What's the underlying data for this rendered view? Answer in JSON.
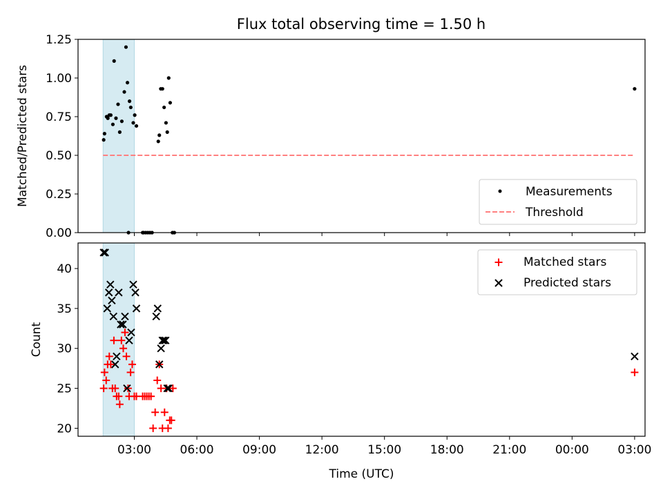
{
  "title": "Flux total observing time = 1.50 h",
  "chart_data": [
    {
      "type": "scatter",
      "ylabel": "Matched/Predicted stars",
      "xlabel": "",
      "xlim_hours": [
        0.3,
        27.5
      ],
      "ylim": [
        0,
        1.25
      ],
      "yticks": [
        0.0,
        0.25,
        0.5,
        0.75,
        1.0,
        1.25
      ],
      "ytick_labels": [
        "0.00",
        "0.25",
        "0.50",
        "0.75",
        "1.00",
        "1.25"
      ],
      "shaded_span_hours": [
        1.5,
        3.0
      ],
      "threshold": {
        "value": 0.5,
        "x_range_hours": [
          1.5,
          27.0
        ],
        "color": "#ff8080"
      },
      "legend": {
        "position": "lower right",
        "entries": [
          "Measurements",
          "Threshold"
        ]
      },
      "series": [
        {
          "name": "Measurements",
          "color": "#000000",
          "x_hours": [
            1.53,
            1.57,
            1.67,
            1.73,
            1.8,
            1.87,
            1.97,
            2.03,
            2.12,
            2.22,
            2.3,
            2.4,
            2.52,
            2.6,
            2.67,
            2.77,
            2.83,
            2.95,
            3.02,
            3.1,
            2.72,
            3.4,
            3.45,
            3.55,
            3.65,
            3.75,
            3.85,
            4.15,
            4.2,
            4.27,
            4.35,
            4.43,
            4.52,
            4.58,
            4.65,
            4.72,
            4.83,
            4.92,
            27.0
          ],
          "y": [
            0.6,
            0.64,
            0.75,
            0.74,
            0.76,
            0.76,
            0.7,
            1.11,
            0.74,
            0.83,
            0.65,
            0.72,
            0.91,
            1.2,
            0.97,
            0.85,
            0.81,
            0.71,
            0.76,
            0.69,
            0.0,
            0.0,
            0.0,
            0.0,
            0.0,
            0.0,
            0.0,
            0.59,
            0.63,
            0.93,
            0.93,
            0.81,
            0.71,
            0.65,
            1.0,
            0.84,
            0.0,
            0.0,
            0.93
          ]
        }
      ]
    },
    {
      "type": "scatter",
      "ylabel": "Count",
      "xlabel": "Time (UTC)",
      "xlim_hours": [
        0.3,
        27.5
      ],
      "ylim": [
        19,
        43.2
      ],
      "yticks": [
        20,
        25,
        30,
        35,
        40
      ],
      "ytick_labels": [
        "20",
        "25",
        "30",
        "35",
        "40"
      ],
      "xticks_hours": [
        3,
        6,
        9,
        12,
        15,
        18,
        21,
        24,
        27
      ],
      "xtick_labels": [
        "03:00",
        "06:00",
        "09:00",
        "12:00",
        "15:00",
        "18:00",
        "21:00",
        "00:00",
        "03:00"
      ],
      "shaded_span_hours": [
        1.5,
        3.0
      ],
      "legend": {
        "position": "upper right",
        "entries": [
          "Matched stars",
          "Predicted stars"
        ]
      },
      "series": [
        {
          "name": "Matched stars",
          "color": "#ff0000",
          "marker": "plus",
          "x_hours": [
            1.53,
            1.57,
            1.65,
            1.72,
            1.8,
            1.87,
            1.95,
            2.02,
            2.08,
            2.15,
            2.25,
            2.3,
            2.38,
            2.47,
            2.55,
            2.62,
            2.7,
            2.75,
            2.82,
            2.9,
            3.0,
            3.1,
            3.4,
            3.5,
            3.6,
            3.7,
            3.8,
            3.9,
            4.0,
            4.1,
            4.2,
            4.28,
            4.35,
            4.45,
            4.55,
            4.62,
            4.7,
            4.78,
            4.85,
            27.0
          ],
          "y": [
            25,
            27,
            26,
            28,
            29,
            28,
            25,
            31,
            25,
            24,
            24,
            23,
            31,
            30,
            32,
            29,
            25,
            24,
            27,
            28,
            24,
            24,
            24,
            24,
            24,
            24,
            24,
            20,
            22,
            26,
            28,
            25,
            20,
            22,
            25,
            20,
            21,
            21,
            25,
            27
          ]
        },
        {
          "name": "Predicted stars",
          "color": "#000000",
          "marker": "x",
          "x_hours": [
            1.53,
            1.6,
            1.7,
            1.78,
            1.85,
            1.92,
            2.0,
            2.08,
            2.15,
            2.25,
            2.35,
            2.45,
            2.55,
            2.65,
            2.75,
            2.85,
            2.95,
            3.05,
            3.1,
            4.05,
            4.12,
            4.2,
            4.28,
            4.35,
            4.42,
            4.5,
            4.58,
            4.65,
            27.0
          ],
          "y": [
            42,
            42,
            35,
            37,
            38,
            36,
            34,
            28,
            29,
            37,
            33,
            33,
            34,
            25,
            31,
            32,
            38,
            37,
            35,
            34,
            35,
            28,
            30,
            31,
            31,
            31,
            25,
            25,
            29
          ]
        }
      ]
    }
  ]
}
